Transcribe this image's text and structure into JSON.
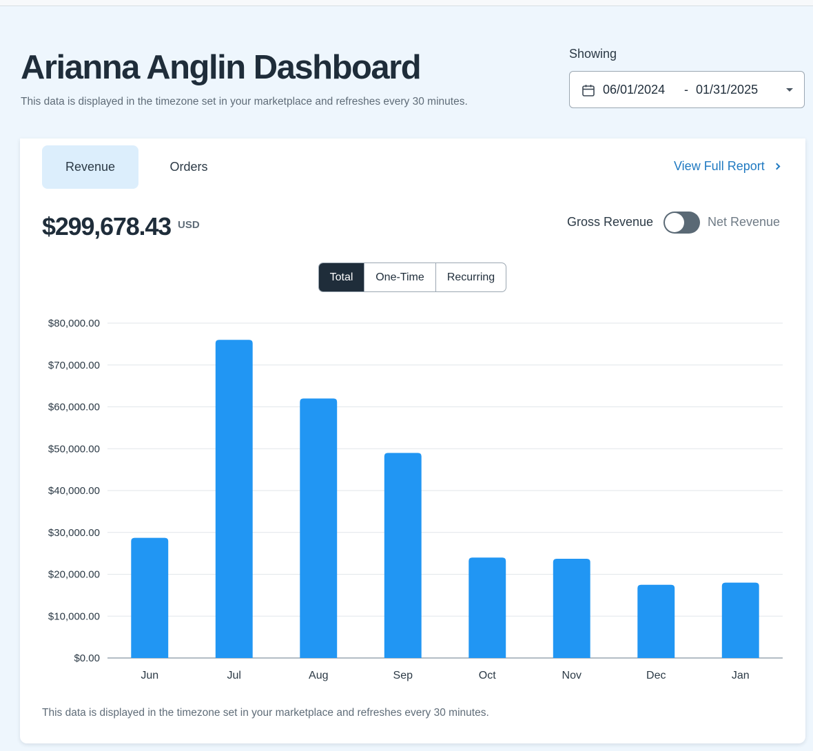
{
  "header": {
    "title": "Arianna Anglin Dashboard",
    "subtitle": "This data is displayed in the timezone set in your marketplace and refreshes every 30 minutes."
  },
  "date_range": {
    "label": "Showing",
    "start": "06/01/2024",
    "separator": "-",
    "end": "01/31/2025",
    "icon": "calendar-icon"
  },
  "tabs": [
    {
      "label": "Revenue",
      "active": true
    },
    {
      "label": "Orders",
      "active": false
    }
  ],
  "view_report": {
    "label": "View Full Report"
  },
  "summary": {
    "amount": "$299,678.43",
    "currency": "USD"
  },
  "revenue_toggle": {
    "left_label": "Gross Revenue",
    "right_label": "Net Revenue",
    "net_selected": false
  },
  "segments": [
    {
      "label": "Total",
      "active": true
    },
    {
      "label": "One-Time",
      "active": false
    },
    {
      "label": "Recurring",
      "active": false
    }
  ],
  "colors": {
    "bar": "#2196f3",
    "accent": "#1f79c1",
    "dark": "#1f2d3a"
  },
  "chart_data": {
    "type": "bar",
    "categories": [
      "Jun",
      "Jul",
      "Aug",
      "Sep",
      "Oct",
      "Nov",
      "Dec",
      "Jan"
    ],
    "values": [
      28700,
      76000,
      62000,
      49000,
      24000,
      23700,
      17500,
      18000
    ],
    "ylim": [
      0,
      80000
    ],
    "yticks": [
      0,
      10000,
      20000,
      30000,
      40000,
      50000,
      60000,
      70000,
      80000
    ],
    "ytick_labels": [
      "$0.00",
      "$10,000.00",
      "$20,000.00",
      "$30,000.00",
      "$40,000.00",
      "$50,000.00",
      "$60,000.00",
      "$70,000.00",
      "$80,000.00"
    ],
    "grid": true,
    "title": "",
    "xlabel": "",
    "ylabel": ""
  },
  "footnote": "This data is displayed in the timezone set in your marketplace and refreshes every 30 minutes."
}
